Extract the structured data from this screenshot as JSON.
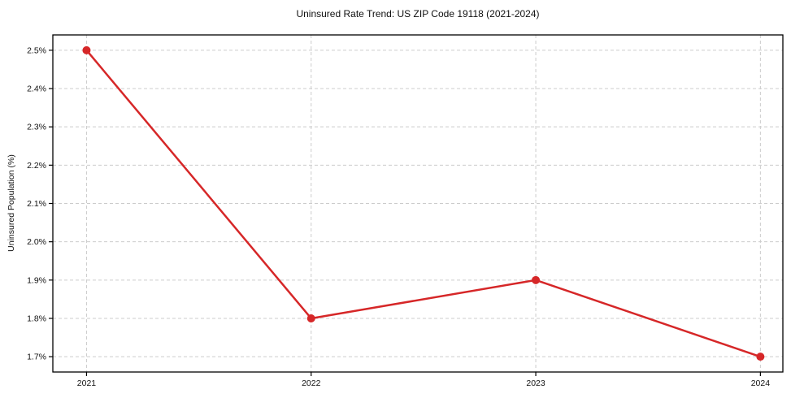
{
  "chart_data": {
    "type": "line",
    "title": "Uninsured Rate Trend: US ZIP Code 19118 (2021-2024)",
    "xlabel": "",
    "ylabel": "Uninsured Population (%)",
    "x": [
      2021,
      2022,
      2023,
      2024
    ],
    "x_tick_labels": [
      "2021",
      "2022",
      "2023",
      "2024"
    ],
    "series": [
      {
        "name": "uninsured-rate",
        "values": [
          2.5,
          1.8,
          1.9,
          1.7
        ],
        "color": "#d62728",
        "marker": "circle",
        "line_width": 2.5,
        "marker_radius": 5
      }
    ],
    "y_ticks": [
      1.7,
      1.8,
      1.9,
      2.0,
      2.1,
      2.2,
      2.3,
      2.4,
      2.5
    ],
    "y_tick_labels": [
      "1.7%",
      "1.8%",
      "1.9%",
      "2.0%",
      "2.1%",
      "2.2%",
      "2.3%",
      "2.4%",
      "2.5%"
    ],
    "xlim": [
      2020.85,
      2024.1
    ],
    "ylim": [
      1.66,
      2.54
    ],
    "grid": true,
    "grid_style": "dashed",
    "grid_color": "#cccccc",
    "spine_color": "#000000",
    "tick_color": "#000000",
    "legend": "none"
  }
}
